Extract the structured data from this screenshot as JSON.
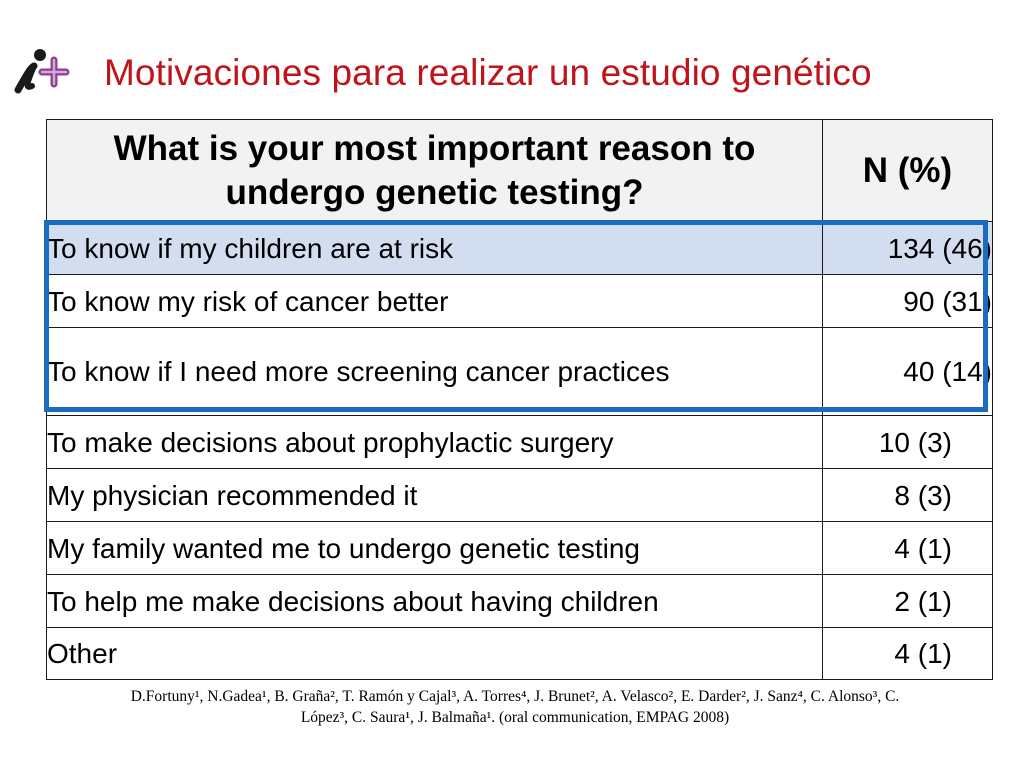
{
  "title": "Motivaciones para realizar un estudio genético",
  "logo": {
    "icon": "i-plus-logo",
    "colors": {
      "letter": "#1a1a1a",
      "plus": "#8a3f8f"
    }
  },
  "table": {
    "headers": [
      "What is your most important reason to undergo genetic testing?",
      "N  (%)"
    ],
    "rows": [
      {
        "reason": "To know if my children are at risk",
        "n": "134 (46)",
        "highlighted": true
      },
      {
        "reason": "To know my risk of cancer better",
        "n": "90 (31)",
        "highlighted": false
      },
      {
        "reason": "To know if I need more screening cancer practices",
        "n": "40 (14)",
        "highlighted": false
      },
      {
        "reason": "To make decisions about prophylactic surgery",
        "n": "10 (3)",
        "highlighted": false
      },
      {
        "reason": "My physician recommended it",
        "n": "8 (3)",
        "highlighted": false
      },
      {
        "reason": "My family wanted me to undergo genetic testing",
        "n": "4 (1)",
        "highlighted": false
      },
      {
        "reason": "To help me make decisions about having children",
        "n": "2 (1)",
        "highlighted": false
      },
      {
        "reason": "Other",
        "n": "4 (1)",
        "highlighted": false
      }
    ]
  },
  "colors": {
    "title": "#c0141b",
    "highlight_box": "#1b6cc0",
    "highlight_fill": "#d2def0"
  },
  "citation": {
    "line1": "D.Fortuny¹, N.Gadea¹, B. Graña², T. Ramón y Cajal³, A. Torres⁴, J. Brunet², A. Velasco², E. Darder², J. Sanz⁴, C. Alonso³, C.",
    "line2": "López³, C. Saura¹, J. Balmaña¹. (oral communication, EMPAG 2008)"
  }
}
